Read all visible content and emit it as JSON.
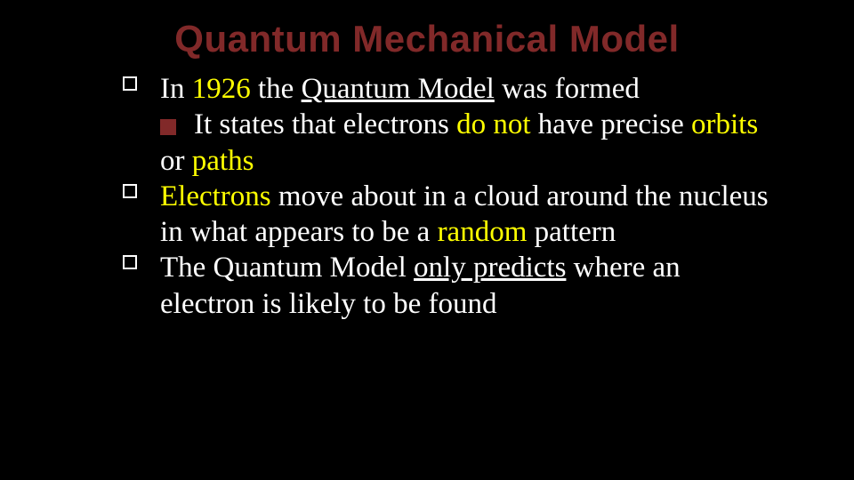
{
  "colors": {
    "background": "#000000",
    "title": "#812929",
    "text": "#ffffff",
    "highlight": "#ffff00",
    "sub_bullet": "#812929",
    "bullet_border": "#ffffff"
  },
  "typography": {
    "title_fontsize": 42,
    "title_weight": 900,
    "body_fontsize": 33,
    "line_height": 1.22,
    "title_family": "Arial Black",
    "body_family": "Georgia"
  },
  "title": "Quantum Mechanical Model",
  "bullets": [
    {
      "runs": [
        {
          "t": "In "
        },
        {
          "t": "1926",
          "hl": true
        },
        {
          "t": " the "
        },
        {
          "t": "Quantum Model",
          "u": true
        },
        {
          "t": " was formed"
        }
      ],
      "sub": {
        "runs": [
          {
            "t": "It states that electrons "
          },
          {
            "t": "do not",
            "hl": true
          },
          {
            "t": " have precise "
          },
          {
            "t": "orbits",
            "hl": true
          },
          {
            "t": " or "
          },
          {
            "t": "paths",
            "hl": true
          }
        ]
      }
    },
    {
      "runs": [
        {
          "t": "Electrons",
          "hl": true
        },
        {
          "t": " move about in a cloud around the nucleus in what appears to be a "
        },
        {
          "t": "random",
          "hl": true
        },
        {
          "t": " pattern"
        }
      ]
    },
    {
      "runs": [
        {
          "t": "The Quantum Model "
        },
        {
          "t": "only predicts",
          "u": true
        },
        {
          "t": " where an electron is likely to be found"
        }
      ]
    }
  ]
}
